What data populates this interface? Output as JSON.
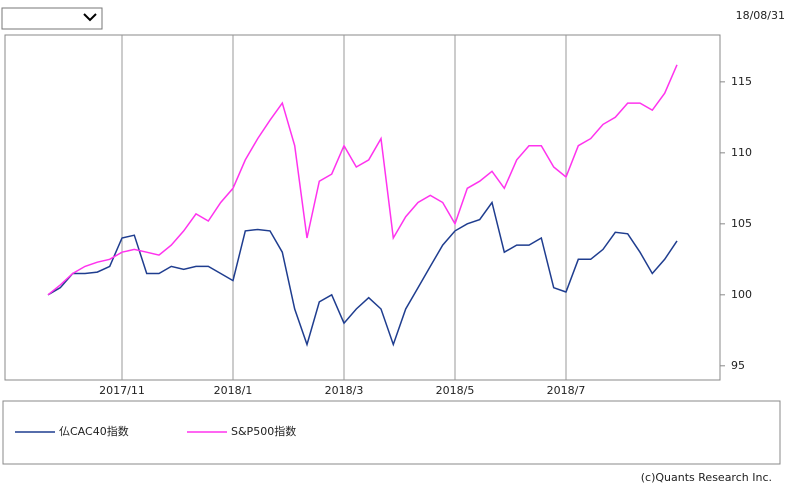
{
  "date": "18/08/31",
  "credit": "(c)Quants Research Inc.",
  "chart_data": {
    "type": "line",
    "categories": [
      null,
      null,
      null,
      null,
      null,
      null,
      "2017/11",
      null,
      null,
      null,
      null,
      null,
      null,
      null,
      null,
      "2018/1",
      null,
      null,
      null,
      null,
      null,
      null,
      null,
      null,
      "2018/3",
      null,
      null,
      null,
      null,
      null,
      null,
      null,
      null,
      "2018/5",
      null,
      null,
      null,
      null,
      null,
      null,
      null,
      null,
      "2018/7",
      null,
      null,
      null,
      null,
      null,
      null,
      null,
      null,
      null
    ],
    "series": [
      {
        "name": "仏CAC40指数",
        "color": "#1f3d8f",
        "values": [
          100,
          100.5,
          101.5,
          101.5,
          101.6,
          102,
          104,
          104.2,
          101.5,
          101.5,
          102,
          101.8,
          102,
          102,
          101.5,
          101,
          104.5,
          104.6,
          104.5,
          103,
          99,
          96.5,
          99.5,
          100,
          98,
          99,
          99.8,
          99,
          96.5,
          99,
          100.5,
          102,
          103.5,
          104.5,
          105,
          105.3,
          106.5,
          103,
          103.5,
          103.5,
          104,
          100.5,
          100.2,
          102.5,
          102.5,
          103.2,
          104.4,
          104.3,
          103,
          101.5,
          102.5,
          103.8
        ]
      },
      {
        "name": "S&P500指数",
        "color": "#ff33ee",
        "values": [
          100,
          100.7,
          101.5,
          102,
          102.3,
          102.5,
          103,
          103.2,
          103,
          102.8,
          103.5,
          104.5,
          105.7,
          105.2,
          106.5,
          107.5,
          109.5,
          111,
          112.3,
          113.5,
          110.5,
          104,
          108,
          108.5,
          110.5,
          109,
          109.5,
          111,
          104,
          105.5,
          106.5,
          107,
          106.5,
          105,
          107.5,
          108,
          108.7,
          107.5,
          109.5,
          110.5,
          110.5,
          109,
          108.3,
          110.5,
          111,
          112,
          112.5,
          113.5,
          113.5,
          113,
          114.2,
          116.2
        ]
      }
    ],
    "ylim": [
      94,
      118.3
    ],
    "yticks": [
      95,
      100,
      105,
      110,
      115
    ],
    "grid": true
  }
}
